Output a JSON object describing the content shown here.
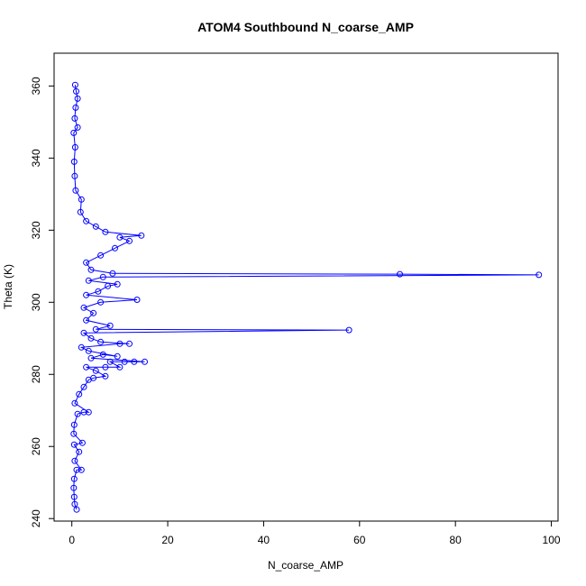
{
  "chart_data": {
    "type": "scatter",
    "title": "ATOM4 Southbound N_coarse_AMP",
    "xlabel": "N_coarse_AMP",
    "ylabel": "Theta (K)",
    "xlim": [
      -3.7,
      101.4
    ],
    "ylim": [
      239.3,
      369.1
    ],
    "xticks": [
      "0",
      "20",
      "40",
      "60",
      "80",
      "100"
    ],
    "yticks": [
      "240",
      "260",
      "280",
      "300",
      "320",
      "340",
      "360"
    ],
    "grid": false,
    "legend": "none",
    "marker": "open-circle",
    "connect_points": true,
    "series_color": "#0000ff",
    "series": [
      {
        "values": [
          {
            "x": 1.0,
            "y": 242.5
          },
          {
            "x": 0.6,
            "y": 244.0
          },
          {
            "x": 0.5,
            "y": 246.0
          },
          {
            "x": 0.4,
            "y": 248.5
          },
          {
            "x": 0.5,
            "y": 251.0
          },
          {
            "x": 1.0,
            "y": 253.5
          },
          {
            "x": 2.0,
            "y": 253.5
          },
          {
            "x": 0.6,
            "y": 256.0
          },
          {
            "x": 1.5,
            "y": 258.5
          },
          {
            "x": 0.5,
            "y": 260.5
          },
          {
            "x": 2.2,
            "y": 261.0
          },
          {
            "x": 0.4,
            "y": 263.5
          },
          {
            "x": 0.5,
            "y": 266.0
          },
          {
            "x": 1.2,
            "y": 269.0
          },
          {
            "x": 2.5,
            "y": 269.5
          },
          {
            "x": 3.5,
            "y": 269.5
          },
          {
            "x": 0.6,
            "y": 272.0
          },
          {
            "x": 1.5,
            "y": 274.5
          },
          {
            "x": 2.5,
            "y": 276.5
          },
          {
            "x": 3.5,
            "y": 278.5
          },
          {
            "x": 4.5,
            "y": 279.0
          },
          {
            "x": 7.0,
            "y": 279.5
          },
          {
            "x": 5.0,
            "y": 281.0
          },
          {
            "x": 3.0,
            "y": 282.0
          },
          {
            "x": 7.0,
            "y": 282.0
          },
          {
            "x": 10.0,
            "y": 282.0
          },
          {
            "x": 8.0,
            "y": 283.5
          },
          {
            "x": 11.0,
            "y": 283.5
          },
          {
            "x": 13.0,
            "y": 283.5
          },
          {
            "x": 15.2,
            "y": 283.5
          },
          {
            "x": 4.0,
            "y": 284.5
          },
          {
            "x": 6.5,
            "y": 285.5
          },
          {
            "x": 9.5,
            "y": 285.0
          },
          {
            "x": 3.5,
            "y": 286.5
          },
          {
            "x": 2.0,
            "y": 287.5
          },
          {
            "x": 10.0,
            "y": 288.5
          },
          {
            "x": 12.0,
            "y": 288.5
          },
          {
            "x": 6.0,
            "y": 289.0
          },
          {
            "x": 4.0,
            "y": 290.0
          },
          {
            "x": 2.5,
            "y": 291.5
          },
          {
            "x": 57.8,
            "y": 292.3
          },
          {
            "x": 5.0,
            "y": 292.5
          },
          {
            "x": 8.0,
            "y": 293.5
          },
          {
            "x": 3.0,
            "y": 295.0
          },
          {
            "x": 4.5,
            "y": 297.0
          },
          {
            "x": 2.5,
            "y": 298.5
          },
          {
            "x": 6.0,
            "y": 300.0
          },
          {
            "x": 13.6,
            "y": 300.7
          },
          {
            "x": 3.0,
            "y": 302.0
          },
          {
            "x": 5.5,
            "y": 303.0
          },
          {
            "x": 7.5,
            "y": 304.5
          },
          {
            "x": 9.5,
            "y": 305.0
          },
          {
            "x": 3.5,
            "y": 306.0
          },
          {
            "x": 6.5,
            "y": 307.0
          },
          {
            "x": 97.4,
            "y": 307.6
          },
          {
            "x": 68.4,
            "y": 307.8
          },
          {
            "x": 8.5,
            "y": 308.0
          },
          {
            "x": 4.0,
            "y": 309.0
          },
          {
            "x": 3.0,
            "y": 311.0
          },
          {
            "x": 6.0,
            "y": 313.0
          },
          {
            "x": 9.0,
            "y": 315.0
          },
          {
            "x": 12.0,
            "y": 317.0
          },
          {
            "x": 10.0,
            "y": 318.0
          },
          {
            "x": 14.5,
            "y": 318.5
          },
          {
            "x": 7.0,
            "y": 319.5
          },
          {
            "x": 5.0,
            "y": 321.0
          },
          {
            "x": 3.0,
            "y": 322.5
          },
          {
            "x": 1.8,
            "y": 325.0
          },
          {
            "x": 2.0,
            "y": 328.5
          },
          {
            "x": 0.8,
            "y": 331.0
          },
          {
            "x": 0.6,
            "y": 335.0
          },
          {
            "x": 0.5,
            "y": 339.0
          },
          {
            "x": 0.7,
            "y": 343.0
          },
          {
            "x": 0.4,
            "y": 347.0
          },
          {
            "x": 1.2,
            "y": 348.5
          },
          {
            "x": 0.6,
            "y": 351.0
          },
          {
            "x": 0.8,
            "y": 354.0
          },
          {
            "x": 1.2,
            "y": 356.5
          },
          {
            "x": 0.9,
            "y": 358.5
          },
          {
            "x": 0.7,
            "y": 360.3
          }
        ]
      }
    ]
  }
}
